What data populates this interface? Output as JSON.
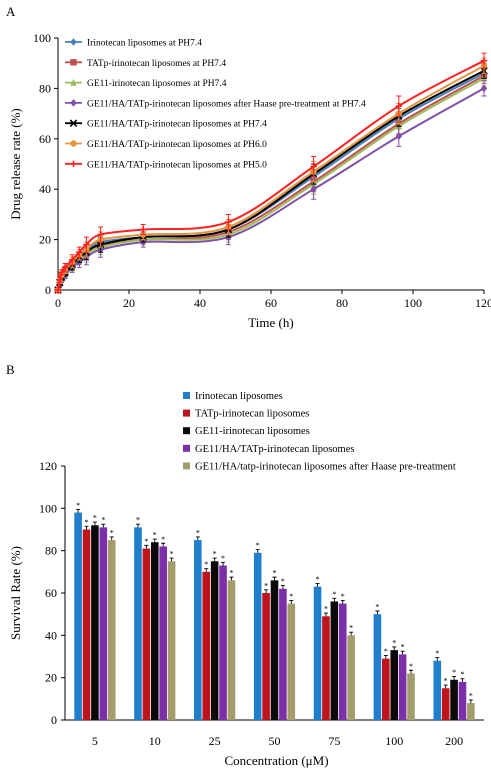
{
  "panels": {
    "a_label": "A",
    "b_label": "B"
  },
  "chart_data": [
    {
      "type": "line",
      "xlabel": "Time (h)",
      "ylabel": "Drug release rate (%)",
      "xlim": [
        0,
        120
      ],
      "ylim": [
        0,
        100
      ],
      "xticks": [
        0,
        20,
        40,
        60,
        80,
        100,
        120
      ],
      "yticks": [
        0,
        20,
        40,
        60,
        80,
        100
      ],
      "grid": false,
      "legend_position": "top-left",
      "x": [
        0,
        0.5,
        1,
        2,
        4,
        6,
        8,
        12,
        24,
        48,
        72,
        96,
        120
      ],
      "series": [
        {
          "name": "Irinotecan liposomes at PH7.4",
          "color": "#4a7ebb",
          "marker": "diamond",
          "values": [
            0,
            3,
            5,
            7,
            10,
            13,
            15,
            19,
            21,
            24,
            45,
            68,
            86
          ],
          "errors": [
            1,
            1,
            1,
            1.5,
            2,
            2,
            3,
            3,
            2,
            3,
            4,
            4,
            3
          ]
        },
        {
          "name": "TATp-irinotecan liposomes at PH7.4",
          "color": "#c0504d",
          "marker": "square",
          "values": [
            0,
            3,
            5,
            7,
            10,
            13,
            15,
            18,
            20,
            23,
            43,
            66,
            85
          ],
          "errors": [
            1,
            1,
            1,
            1.5,
            2,
            2,
            3,
            3,
            2,
            3,
            4,
            4,
            3
          ]
        },
        {
          "name": "GE11-irinotecan liposomes at PH7.4",
          "color": "#9bbb59",
          "marker": "triangle",
          "values": [
            0,
            3,
            4.5,
            6.5,
            9.5,
            12,
            14,
            17,
            20,
            22,
            42,
            65,
            84
          ],
          "errors": [
            1,
            1,
            1,
            1.5,
            2,
            2,
            3,
            3,
            2,
            3,
            4,
            4,
            3
          ]
        },
        {
          "name": "GE11/HA/TATp-irinotecan liposomes after Haase pre-treatment at PH7.4",
          "color": "#7f50a8",
          "marker": "diamond",
          "values": [
            0,
            2.5,
            4,
            6,
            9,
            11,
            13,
            16,
            19,
            21,
            40,
            61,
            80
          ],
          "errors": [
            1,
            1,
            1,
            1.5,
            2,
            2,
            3,
            3,
            2,
            3,
            4,
            4,
            3
          ]
        },
        {
          "name": "GE11/HA/TATp-irinotecan liposomes at PH7.4",
          "color": "#000000",
          "marker": "cross",
          "values": [
            0,
            3,
            5,
            7,
            10,
            13,
            15,
            18,
            21,
            24,
            46,
            69,
            87
          ],
          "errors": [
            1,
            1,
            1,
            1.5,
            2,
            2,
            3,
            3,
            2,
            3,
            4,
            4,
            3
          ]
        },
        {
          "name": "GE11/HA/TATp-irinotecan liposomes at PH6.0",
          "color": "#e3963e",
          "marker": "circle",
          "values": [
            0,
            3.5,
            6,
            8,
            11,
            14,
            16,
            20,
            22,
            25,
            47,
            70,
            89
          ],
          "errors": [
            1,
            1,
            1,
            1.5,
            2,
            2,
            3,
            3,
            2,
            3,
            4,
            4,
            3
          ]
        },
        {
          "name": "GE11/HA/TATp-irinotecan liposomes at PH5.0",
          "color": "#ff2020",
          "marker": "plus",
          "values": [
            0,
            4,
            7,
            9,
            12,
            15,
            18,
            22,
            24,
            27,
            49,
            73,
            91
          ],
          "errors": [
            1,
            1,
            1,
            1.5,
            2,
            2,
            3,
            3,
            2,
            3,
            4,
            4,
            3
          ]
        }
      ]
    },
    {
      "type": "bar",
      "xlabel": "Concentration (μM)",
      "ylabel": "Survival Rate (%)",
      "ylim": [
        0,
        120
      ],
      "yticks": [
        0,
        20,
        40,
        60,
        80,
        100,
        120
      ],
      "grid": false,
      "legend_position": "top",
      "annotation": "*",
      "categories": [
        "5",
        "10",
        "25",
        "50",
        "75",
        "100",
        "200"
      ],
      "series": [
        {
          "name": "Irinotecan liposomes",
          "color": "#1f7fcc",
          "values": [
            98,
            91,
            85,
            79,
            63,
            50,
            28
          ],
          "errors": [
            1.5,
            1.5,
            1.5,
            1.5,
            1.5,
            1.5,
            1.5
          ]
        },
        {
          "name": "TATp-irinotecan liposomes",
          "color": "#c0141c",
          "values": [
            90,
            81,
            70,
            60,
            49,
            29,
            15
          ],
          "errors": [
            1.5,
            1.5,
            1.5,
            1.5,
            1.5,
            1.5,
            1.5
          ]
        },
        {
          "name": "GE11-irinotecan liposomes",
          "color": "#0a0a0a",
          "values": [
            92,
            84,
            75,
            66,
            56,
            33,
            19
          ],
          "errors": [
            1.5,
            1.5,
            1.5,
            1.5,
            1.5,
            1.5,
            1.5
          ]
        },
        {
          "name": "GE11/HA/TATp-irinotecan liposomes",
          "color": "#7b2fa8",
          "values": [
            91,
            82,
            73,
            62,
            55,
            31,
            18
          ],
          "errors": [
            1.5,
            1.5,
            1.5,
            1.5,
            1.5,
            1.5,
            1.5
          ]
        },
        {
          "name": "GE11/HA/tatp-irinotecan liposomes after Haase pre-treatment",
          "color": "#a39c6b",
          "values": [
            85,
            75,
            66,
            55,
            40,
            22,
            8
          ],
          "errors": [
            1.5,
            1.5,
            1.5,
            1.5,
            1.5,
            1.5,
            1.5
          ]
        }
      ]
    }
  ]
}
